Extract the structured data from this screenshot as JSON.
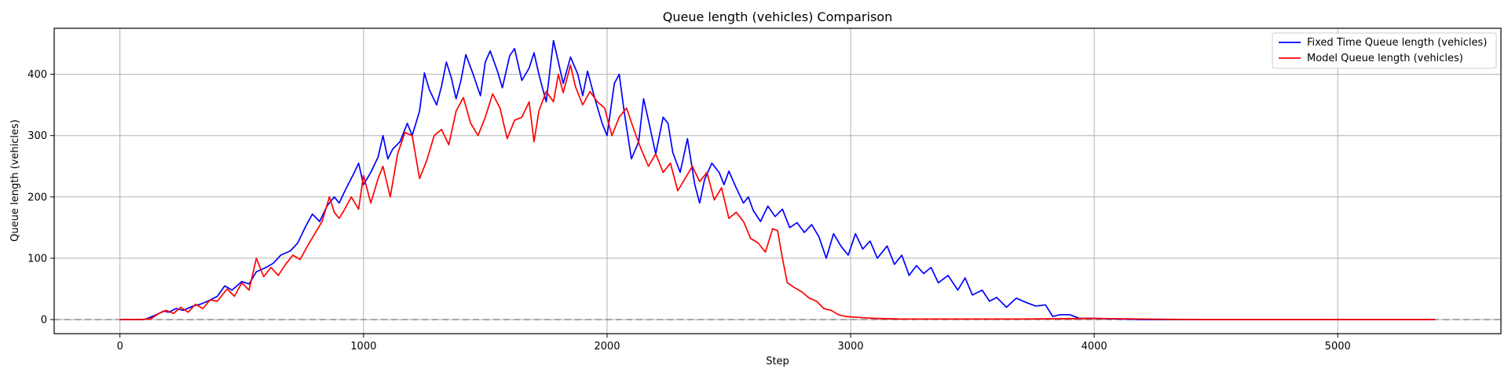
{
  "chart_data": {
    "type": "line",
    "title": "Queue length (vehicles) Comparison",
    "xlabel": "Step",
    "ylabel": "Queue length (vehicles)",
    "xlim": [
      -270,
      5670
    ],
    "ylim": [
      -23,
      475
    ],
    "x_ticks": [
      0,
      1000,
      2000,
      3000,
      4000,
      5000
    ],
    "y_ticks": [
      0,
      100,
      200,
      300,
      400
    ],
    "grid": true,
    "legend_position": "top-right",
    "reference_line": {
      "y": 0,
      "style": "dashed",
      "color": "#808080"
    },
    "series": [
      {
        "name": "Fixed Time Queue length (vehicles)",
        "color": "#0000ff",
        "points": [
          [
            0,
            0
          ],
          [
            100,
            0
          ],
          [
            120,
            3
          ],
          [
            150,
            8
          ],
          [
            180,
            14
          ],
          [
            200,
            12
          ],
          [
            230,
            18
          ],
          [
            260,
            15
          ],
          [
            300,
            22
          ],
          [
            330,
            25
          ],
          [
            360,
            30
          ],
          [
            400,
            38
          ],
          [
            430,
            55
          ],
          [
            460,
            48
          ],
          [
            500,
            62
          ],
          [
            530,
            58
          ],
          [
            560,
            78
          ],
          [
            600,
            85
          ],
          [
            630,
            92
          ],
          [
            660,
            105
          ],
          [
            700,
            112
          ],
          [
            730,
            125
          ],
          [
            760,
            150
          ],
          [
            790,
            172
          ],
          [
            820,
            160
          ],
          [
            850,
            185
          ],
          [
            880,
            200
          ],
          [
            900,
            190
          ],
          [
            930,
            215
          ],
          [
            960,
            238
          ],
          [
            980,
            255
          ],
          [
            1000,
            220
          ],
          [
            1030,
            240
          ],
          [
            1060,
            265
          ],
          [
            1080,
            300
          ],
          [
            1100,
            262
          ],
          [
            1120,
            278
          ],
          [
            1150,
            290
          ],
          [
            1180,
            320
          ],
          [
            1200,
            300
          ],
          [
            1230,
            340
          ],
          [
            1250,
            402
          ],
          [
            1270,
            375
          ],
          [
            1300,
            350
          ],
          [
            1320,
            380
          ],
          [
            1340,
            420
          ],
          [
            1360,
            395
          ],
          [
            1380,
            360
          ],
          [
            1400,
            390
          ],
          [
            1420,
            432
          ],
          [
            1450,
            400
          ],
          [
            1480,
            365
          ],
          [
            1500,
            420
          ],
          [
            1520,
            438
          ],
          [
            1550,
            405
          ],
          [
            1570,
            378
          ],
          [
            1600,
            430
          ],
          [
            1620,
            442
          ],
          [
            1650,
            390
          ],
          [
            1680,
            410
          ],
          [
            1700,
            435
          ],
          [
            1720,
            400
          ],
          [
            1750,
            355
          ],
          [
            1780,
            455
          ],
          [
            1800,
            420
          ],
          [
            1820,
            385
          ],
          [
            1850,
            428
          ],
          [
            1880,
            400
          ],
          [
            1900,
            365
          ],
          [
            1920,
            405
          ],
          [
            1950,
            360
          ],
          [
            1980,
            320
          ],
          [
            2000,
            300
          ],
          [
            2030,
            385
          ],
          [
            2050,
            400
          ],
          [
            2070,
            340
          ],
          [
            2100,
            262
          ],
          [
            2130,
            290
          ],
          [
            2150,
            360
          ],
          [
            2170,
            325
          ],
          [
            2200,
            270
          ],
          [
            2230,
            330
          ],
          [
            2250,
            320
          ],
          [
            2270,
            272
          ],
          [
            2300,
            240
          ],
          [
            2330,
            295
          ],
          [
            2360,
            220
          ],
          [
            2380,
            190
          ],
          [
            2400,
            228
          ],
          [
            2430,
            255
          ],
          [
            2460,
            240
          ],
          [
            2480,
            220
          ],
          [
            2500,
            242
          ],
          [
            2530,
            215
          ],
          [
            2560,
            190
          ],
          [
            2580,
            200
          ],
          [
            2600,
            178
          ],
          [
            2630,
            160
          ],
          [
            2660,
            185
          ],
          [
            2690,
            168
          ],
          [
            2720,
            180
          ],
          [
            2750,
            150
          ],
          [
            2780,
            158
          ],
          [
            2810,
            142
          ],
          [
            2840,
            155
          ],
          [
            2870,
            135
          ],
          [
            2900,
            100
          ],
          [
            2930,
            140
          ],
          [
            2960,
            120
          ],
          [
            2990,
            105
          ],
          [
            3020,
            140
          ],
          [
            3050,
            115
          ],
          [
            3080,
            128
          ],
          [
            3110,
            100
          ],
          [
            3150,
            120
          ],
          [
            3180,
            90
          ],
          [
            3210,
            105
          ],
          [
            3240,
            72
          ],
          [
            3270,
            88
          ],
          [
            3300,
            75
          ],
          [
            3330,
            85
          ],
          [
            3360,
            60
          ],
          [
            3400,
            72
          ],
          [
            3440,
            48
          ],
          [
            3470,
            68
          ],
          [
            3500,
            40
          ],
          [
            3540,
            48
          ],
          [
            3570,
            30
          ],
          [
            3600,
            36
          ],
          [
            3640,
            20
          ],
          [
            3680,
            35
          ],
          [
            3720,
            28
          ],
          [
            3760,
            22
          ],
          [
            3800,
            24
          ],
          [
            3830,
            5
          ],
          [
            3860,
            8
          ],
          [
            3900,
            8
          ],
          [
            3940,
            2
          ],
          [
            4000,
            2
          ],
          [
            4100,
            1
          ],
          [
            4200,
            0
          ],
          [
            5400,
            0
          ]
        ]
      },
      {
        "name": "Model Queue length (vehicles)",
        "color": "#ff0000",
        "points": [
          [
            0,
            0
          ],
          [
            90,
            0
          ],
          [
            130,
            2
          ],
          [
            160,
            10
          ],
          [
            190,
            15
          ],
          [
            220,
            10
          ],
          [
            250,
            20
          ],
          [
            280,
            12
          ],
          [
            310,
            25
          ],
          [
            340,
            18
          ],
          [
            370,
            32
          ],
          [
            400,
            30
          ],
          [
            440,
            50
          ],
          [
            470,
            38
          ],
          [
            500,
            60
          ],
          [
            530,
            48
          ],
          [
            560,
            100
          ],
          [
            590,
            70
          ],
          [
            620,
            85
          ],
          [
            650,
            72
          ],
          [
            680,
            90
          ],
          [
            710,
            105
          ],
          [
            740,
            98
          ],
          [
            770,
            120
          ],
          [
            800,
            140
          ],
          [
            830,
            160
          ],
          [
            860,
            200
          ],
          [
            880,
            175
          ],
          [
            900,
            165
          ],
          [
            920,
            178
          ],
          [
            950,
            200
          ],
          [
            980,
            180
          ],
          [
            1000,
            235
          ],
          [
            1030,
            190
          ],
          [
            1060,
            230
          ],
          [
            1080,
            250
          ],
          [
            1110,
            200
          ],
          [
            1140,
            270
          ],
          [
            1170,
            305
          ],
          [
            1200,
            300
          ],
          [
            1230,
            230
          ],
          [
            1260,
            260
          ],
          [
            1290,
            300
          ],
          [
            1320,
            310
          ],
          [
            1350,
            285
          ],
          [
            1380,
            340
          ],
          [
            1410,
            362
          ],
          [
            1440,
            320
          ],
          [
            1470,
            300
          ],
          [
            1500,
            330
          ],
          [
            1530,
            368
          ],
          [
            1560,
            345
          ],
          [
            1590,
            295
          ],
          [
            1620,
            325
          ],
          [
            1650,
            330
          ],
          [
            1680,
            355
          ],
          [
            1700,
            290
          ],
          [
            1720,
            340
          ],
          [
            1750,
            372
          ],
          [
            1780,
            355
          ],
          [
            1800,
            400
          ],
          [
            1820,
            370
          ],
          [
            1850,
            415
          ],
          [
            1870,
            380
          ],
          [
            1900,
            350
          ],
          [
            1930,
            372
          ],
          [
            1960,
            355
          ],
          [
            1990,
            345
          ],
          [
            2020,
            300
          ],
          [
            2050,
            330
          ],
          [
            2080,
            345
          ],
          [
            2110,
            310
          ],
          [
            2140,
            278
          ],
          [
            2170,
            250
          ],
          [
            2200,
            270
          ],
          [
            2230,
            240
          ],
          [
            2260,
            255
          ],
          [
            2290,
            210
          ],
          [
            2320,
            230
          ],
          [
            2350,
            250
          ],
          [
            2380,
            225
          ],
          [
            2410,
            240
          ],
          [
            2440,
            195
          ],
          [
            2470,
            215
          ],
          [
            2500,
            165
          ],
          [
            2530,
            175
          ],
          [
            2560,
            160
          ],
          [
            2590,
            132
          ],
          [
            2620,
            125
          ],
          [
            2650,
            110
          ],
          [
            2680,
            148
          ],
          [
            2700,
            145
          ],
          [
            2720,
            100
          ],
          [
            2740,
            60
          ],
          [
            2770,
            52
          ],
          [
            2800,
            45
          ],
          [
            2830,
            35
          ],
          [
            2860,
            30
          ],
          [
            2890,
            18
          ],
          [
            2920,
            15
          ],
          [
            2950,
            8
          ],
          [
            2980,
            5
          ],
          [
            3050,
            3
          ],
          [
            3100,
            2
          ],
          [
            3200,
            1
          ],
          [
            3400,
            1
          ],
          [
            3700,
            1
          ],
          [
            4000,
            2
          ],
          [
            4200,
            1
          ],
          [
            4400,
            0
          ],
          [
            5400,
            0
          ]
        ]
      }
    ]
  }
}
